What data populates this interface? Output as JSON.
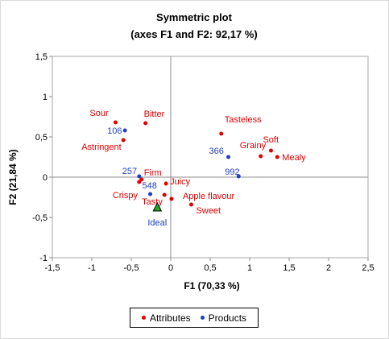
{
  "chart_data": {
    "type": "scatter",
    "title": "Symmetric plot",
    "subtitle": "(axes F1 and F2: 92,17 %)",
    "xlabel": "F1 (70,33 %)",
    "ylabel": "F2 (21,84 %)",
    "xlim": [
      -1.5,
      2.5
    ],
    "ylim": [
      -1,
      1.5
    ],
    "x_ticks": [
      "-1,5",
      "-1",
      "-0,5",
      "0",
      "0,5",
      "1",
      "1,5",
      "2",
      "2,5"
    ],
    "y_ticks": [
      "-1",
      "-0,5",
      "0",
      "0,5",
      "1",
      "1,5"
    ],
    "grid": false,
    "legend_position": "bottom",
    "colors": {
      "attributes": "#e00000",
      "products": "#1f3fbf",
      "ideal_fill": "#22aa22"
    },
    "series": [
      {
        "name": "Attributes",
        "points": [
          {
            "label": "Sour",
            "x": -0.7,
            "y": 0.68
          },
          {
            "label": "Bitter",
            "x": -0.32,
            "y": 0.67
          },
          {
            "label": "Astringent",
            "x": -0.6,
            "y": 0.46
          },
          {
            "label": "Tasteless",
            "x": 0.64,
            "y": 0.54
          },
          {
            "label": "Soft",
            "x": 1.27,
            "y": 0.33
          },
          {
            "label": "Grainy",
            "x": 1.14,
            "y": 0.26
          },
          {
            "label": "Mealy",
            "x": 1.35,
            "y": 0.25
          },
          {
            "label": "Firm",
            "x": -0.37,
            "y": -0.03
          },
          {
            "label": "Juicy",
            "x": -0.06,
            "y": -0.08
          },
          {
            "label": "Crispy",
            "x": -0.4,
            "y": -0.06
          },
          {
            "label": "Tasty",
            "x": -0.08,
            "y": -0.22
          },
          {
            "label": "Apple flavour",
            "x": 0.01,
            "y": -0.27
          },
          {
            "label": "Sweet",
            "x": 0.26,
            "y": -0.34
          }
        ]
      },
      {
        "name": "Products",
        "points": [
          {
            "label": "106",
            "x": -0.58,
            "y": 0.58
          },
          {
            "label": "257",
            "x": -0.4,
            "y": 0.01
          },
          {
            "label": "548",
            "x": -0.26,
            "y": -0.21
          },
          {
            "label": "366",
            "x": 0.73,
            "y": 0.25
          },
          {
            "label": "992",
            "x": 0.86,
            "y": 0.01
          }
        ]
      }
    ],
    "ideal": {
      "label": "Ideal",
      "x": -0.17,
      "y": -0.38
    }
  }
}
